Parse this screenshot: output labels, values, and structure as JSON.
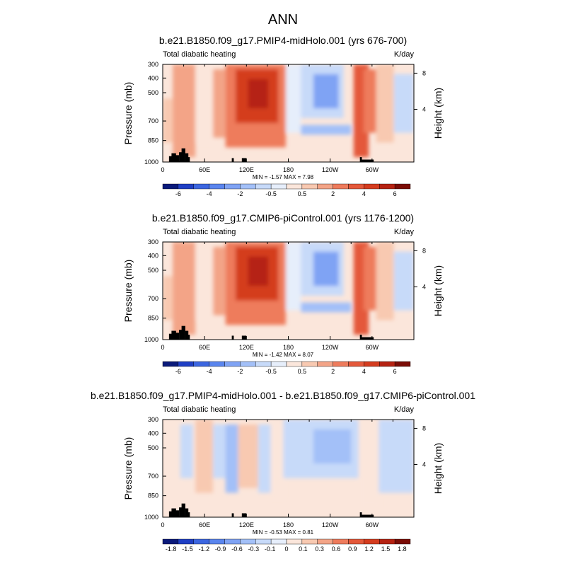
{
  "figure": {
    "title": "ANN",
    "units": "K/day"
  },
  "chart_data": [
    {
      "type": "heatmap",
      "title": "b.e21.B1850.f09_g17.PMIP4-midHolo.001 (yrs 676-700)",
      "variable": "Total diabatic heating",
      "units": "K/day",
      "xlabel": "",
      "ylabel": "Pressure (mb)",
      "y2label": "Height (km)",
      "x_ticks": [
        "0",
        "60E",
        "120E",
        "180",
        "120W",
        "60W"
      ],
      "y_ticks": [
        "300",
        "400",
        "500",
        "700",
        "850",
        "1000"
      ],
      "y2_ticks": [
        "8",
        "4"
      ],
      "stats": "MIN =  -1.57  MAX =   7.98",
      "min": -1.57,
      "max": 7.98,
      "colorbar_labels": [
        "-6",
        "-4",
        "-2",
        "-0.5",
        "0.5",
        "2",
        "4",
        "6"
      ],
      "colorbar_colors": [
        "#0a1a7a",
        "#1f3fc4",
        "#3c66e0",
        "#5a85ee",
        "#7fa3f4",
        "#a3c0f8",
        "#c7daf9",
        "#e6eefb",
        "#fbe6db",
        "#f8c9b1",
        "#f3a487",
        "#ee7b5c",
        "#e4583a",
        "#d43c1f",
        "#b52212",
        "#7a0c06"
      ]
    },
    {
      "type": "heatmap",
      "title": "b.e21.B1850.f09_g17.CMIP6-piControl.001 (yrs 1176-1200)",
      "variable": "Total diabatic heating",
      "units": "K/day",
      "xlabel": "",
      "ylabel": "Pressure (mb)",
      "y2label": "Height (km)",
      "x_ticks": [
        "0",
        "60E",
        "120E",
        "180",
        "120W",
        "60W"
      ],
      "y_ticks": [
        "300",
        "400",
        "500",
        "700",
        "850",
        "1000"
      ],
      "y2_ticks": [
        "8",
        "4"
      ],
      "stats": "MIN =  -1.42  MAX =   8.07",
      "min": -1.42,
      "max": 8.07,
      "colorbar_labels": [
        "-6",
        "-4",
        "-2",
        "-0.5",
        "0.5",
        "2",
        "4",
        "6"
      ],
      "colorbar_colors": [
        "#0a1a7a",
        "#1f3fc4",
        "#3c66e0",
        "#5a85ee",
        "#7fa3f4",
        "#a3c0f8",
        "#c7daf9",
        "#e6eefb",
        "#fbe6db",
        "#f8c9b1",
        "#f3a487",
        "#ee7b5c",
        "#e4583a",
        "#d43c1f",
        "#b52212",
        "#7a0c06"
      ]
    },
    {
      "type": "heatmap",
      "title": "b.e21.B1850.f09_g17.PMIP4-midHolo.001 - b.e21.B1850.f09_g17.CMIP6-piControl.001",
      "variable": "Total diabatic heating",
      "units": "K/day",
      "xlabel": "",
      "ylabel": "Pressure (mb)",
      "y2label": "Height (km)",
      "x_ticks": [
        "0",
        "60E",
        "120E",
        "180",
        "120W",
        "60W"
      ],
      "y_ticks": [
        "300",
        "400",
        "500",
        "700",
        "850",
        "1000"
      ],
      "y2_ticks": [
        "8",
        "4"
      ],
      "stats": "MIN =  -0.53  MAX =   0.81",
      "min": -0.53,
      "max": 0.81,
      "colorbar_labels": [
        "-1.8",
        "-1.5",
        "-1.2",
        "-0.9",
        "-0.6",
        "-0.3",
        "-0.1",
        "0",
        "0.1",
        "0.3",
        "0.6",
        "0.9",
        "1.2",
        "1.5",
        "1.8"
      ],
      "colorbar_colors": [
        "#0a1a7a",
        "#1f3fc4",
        "#3c66e0",
        "#5a85ee",
        "#7fa3f4",
        "#a3c0f8",
        "#c7daf9",
        "#e6eefb",
        "#fbe6db",
        "#f8c9b1",
        "#f3a487",
        "#ee7b5c",
        "#e4583a",
        "#d43c1f",
        "#b52212",
        "#7a0c06"
      ]
    }
  ]
}
